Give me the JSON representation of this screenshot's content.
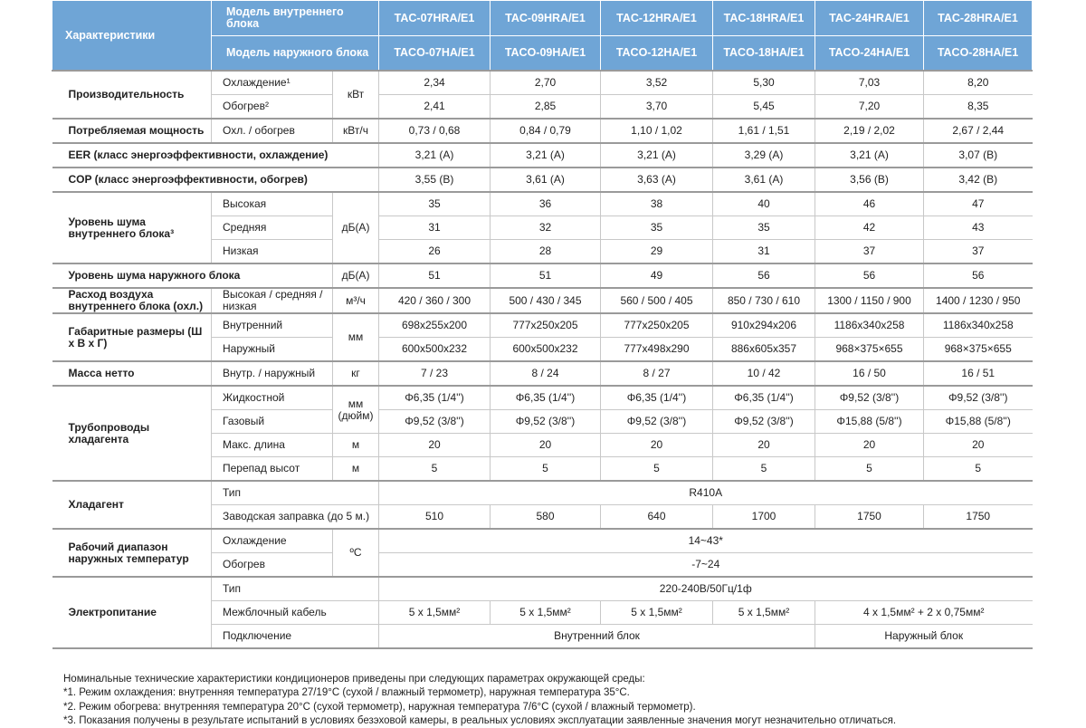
{
  "header": {
    "characteristics": "Характеристики",
    "indoor_model_label": "Модель внутреннего блока",
    "outdoor_model_label": "Модель наружного блока",
    "indoor_models": [
      "TAC-07HRA/E1",
      "TAC-09HRA/E1",
      "TAC-12HRA/E1",
      "TAC-18HRA/E1",
      "TAC-24HRA/E1",
      "TAC-28HRA/E1"
    ],
    "outdoor_models": [
      "TACO-07HA/E1",
      "TACO-09HA/E1",
      "TACO-12HA/E1",
      "TACO-18HA/E1",
      "TACO-24HA/E1",
      "TACO-28HA/E1"
    ]
  },
  "groups": [
    {
      "label": "Производительность",
      "unit": "кВт",
      "rows": [
        {
          "sub": "Охлаждение¹",
          "values": [
            "2,34",
            "2,70",
            "3,52",
            "5,30",
            "7,03",
            "8,20"
          ]
        },
        {
          "sub": "Обогрев²",
          "values": [
            "2,41",
            "2,85",
            "3,70",
            "5,45",
            "7,20",
            "8,35"
          ]
        }
      ]
    },
    {
      "label": "Потребляемая мощность",
      "unit": "кВт/ч",
      "rows": [
        {
          "sub": "Охл. / обогрев",
          "values": [
            "0,73 / 0,68",
            "0,84 / 0,79",
            "1,10 / 1,02",
            "1,61 / 1,51",
            "2,19 / 2,02",
            "2,67 / 2,44"
          ]
        }
      ]
    },
    {
      "label": "EER (класс энергоэффективности, охлаждение)",
      "rows": [
        {
          "sub": null,
          "values": [
            "3,21 (A)",
            "3,21 (A)",
            "3,21 (A)",
            "3,29 (A)",
            "3,21 (A)",
            "3,07 (B)"
          ]
        }
      ]
    },
    {
      "label": "COP (класс энергоэффективности, обогрев)",
      "rows": [
        {
          "sub": null,
          "values": [
            "3,55 (B)",
            "3,61 (A)",
            "3,63 (A)",
            "3,61 (A)",
            "3,56 (B)",
            "3,42 (B)"
          ]
        }
      ]
    },
    {
      "label": "Уровень шума внутреннего блока³",
      "unit": "дБ(А)",
      "rows": [
        {
          "sub": "Высокая",
          "values": [
            "35",
            "36",
            "38",
            "40",
            "46",
            "47"
          ]
        },
        {
          "sub": "Средняя",
          "values": [
            "31",
            "32",
            "35",
            "35",
            "42",
            "43"
          ]
        },
        {
          "sub": "Низкая",
          "values": [
            "26",
            "28",
            "29",
            "31",
            "37",
            "37"
          ]
        }
      ]
    },
    {
      "label": "Уровень шума наружного блока",
      "unit": "дБ(А)",
      "rows": [
        {
          "sub": null,
          "values": [
            "51",
            "51",
            "49",
            "56",
            "56",
            "56"
          ]
        }
      ]
    },
    {
      "label": "Расход воздуха внутреннего блока (охл.)",
      "unit": "м³/ч",
      "rows": [
        {
          "sub": "Высокая / средняя / низкая",
          "values": [
            "420 / 360 / 300",
            "500 / 430 / 345",
            "560 / 500 / 405",
            "850 / 730 / 610",
            "1300 / 1150 / 900",
            "1400 / 1230 / 950"
          ]
        }
      ]
    },
    {
      "label": "Габаритные размеры (Ш х В х Г)",
      "unit": "мм",
      "rows": [
        {
          "sub": "Внутренний",
          "values": [
            "698x255x200",
            "777x250x205",
            "777x250x205",
            "910x294x206",
            "1186x340x258",
            "1186x340x258"
          ]
        },
        {
          "sub": "Наружный",
          "values": [
            "600x500x232",
            "600x500x232",
            "777x498x290",
            "886x605x357",
            "968×375×655",
            "968×375×655"
          ]
        }
      ]
    },
    {
      "label": "Масса нетто",
      "unit": "кг",
      "rows": [
        {
          "sub": "Внутр. / наружный",
          "values": [
            "7 / 23",
            "8 / 24",
            "8 / 27",
            "10 / 42",
            "16 / 50",
            "16 / 51"
          ]
        }
      ]
    },
    {
      "label": "Трубопроводы хладагента",
      "rows": [
        {
          "sub": "Жидкостной",
          "unit": "мм (дюйм)",
          "unit_rows": 2,
          "values": [
            "Φ6,35 (1/4'')",
            "Φ6,35 (1/4'')",
            "Φ6,35 (1/4'')",
            "Φ6,35 (1/4'')",
            "Φ9,52 (3/8'')",
            "Φ9,52 (3/8'')"
          ]
        },
        {
          "sub": "Газовый",
          "values": [
            "Φ9,52 (3/8'')",
            "Φ9,52 (3/8'')",
            "Φ9,52 (3/8'')",
            "Φ9,52 (3/8'')",
            "Φ15,88 (5/8'')",
            "Φ15,88 (5/8'')"
          ]
        },
        {
          "sub": "Макс. длина",
          "unit": "м",
          "values": [
            "20",
            "20",
            "20",
            "20",
            "20",
            "20"
          ]
        },
        {
          "sub": "Перепад высот",
          "unit": "м",
          "values": [
            "5",
            "5",
            "5",
            "5",
            "5",
            "5"
          ]
        }
      ]
    },
    {
      "label": "Хладагент",
      "rows": [
        {
          "sub": "Тип",
          "values": [
            {
              "v": "R410A",
              "span": 6
            }
          ]
        },
        {
          "sub": "Заводская заправка (до 5 м.)",
          "values": [
            "510",
            "580",
            "640",
            "1700",
            "1750",
            "1750"
          ]
        }
      ]
    },
    {
      "label": "Рабочий диапазон наружных температур",
      "unit": "ºС",
      "rows": [
        {
          "sub": "Охлаждение",
          "values": [
            {
              "v": "14~43*",
              "span": 6
            }
          ]
        },
        {
          "sub": "Обогрев",
          "values": [
            {
              "v": "-7~24",
              "span": 6
            }
          ]
        }
      ]
    },
    {
      "label": "Электропитание",
      "rows": [
        {
          "sub": "Тип",
          "values": [
            {
              "v": "220-240В/50Гц/1ф",
              "span": 6
            }
          ]
        },
        {
          "sub": "Межблочный кабель",
          "values": [
            "5 x 1,5мм²",
            "5 x 1,5мм²",
            "5 x 1,5мм²",
            "5 x 1,5мм²",
            {
              "v": "4 x 1,5мм² + 2 x 0,75мм²",
              "span": 2
            }
          ]
        },
        {
          "sub": "Подключение",
          "values": [
            {
              "v": "Внутренний блок",
              "span": 4
            },
            {
              "v": "Наружный блок",
              "span": 2
            }
          ]
        }
      ]
    }
  ],
  "footer": [
    "Номинальные технические характеристики кондиционеров приведены при следующих параметрах окружающей среды:",
    "*1. Режим охлаждения: внутренняя температура 27/19°C (сухой / влажный термометр), наружная температура 35°C.",
    "*2. Режим обогрева: внутренняя температура 20°C (сухой термометр), наружная температура 7/6°C (сухой / влажный термометр).",
    "*3. Показания получены в результате испытаний в условиях безэховой камеры, в реальных условиях эксплуатации заявленные значения могут незначительно отличаться."
  ]
}
